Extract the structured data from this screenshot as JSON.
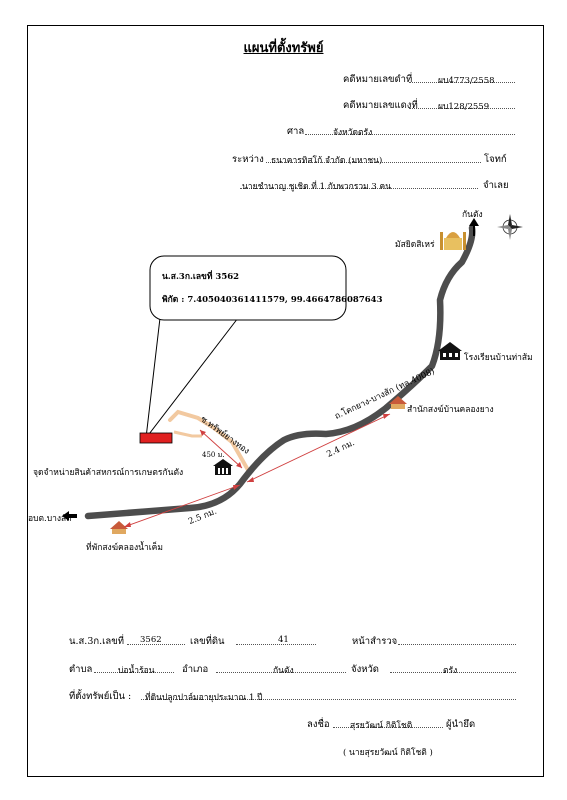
{
  "title": "แผนที่ตั้งทรัพย์",
  "header": {
    "case_black_label": "คดีหมายเลขดำที่",
    "case_black_value": "ผบ4773/2558",
    "case_red_label": "คดีหมายเลขแดงที่",
    "case_red_value": "ผบ128/2559",
    "court_label": "ศาล",
    "court_value": "จังหวัดตรัง",
    "between_label": "ระหว่าง",
    "plaintiff_value": "ธนาคารทิสโก้ จำกัด (มหาชน)",
    "plaintiff_label": "โจทก์",
    "defendant_value": "นายชำนาญ ชูเชิด ที่ 1 กับพวกรวม 3 คน",
    "defendant_label": "จำเลย"
  },
  "callout": {
    "deed": "น.ส.3ก.เลขที่ 3562",
    "coords": "พิกัด : 7.405040361411579, 99.4664786087643"
  },
  "map_labels": {
    "kantang": "กันตัง",
    "mosque": "มัสยิดสิเหร่",
    "school": "โรงเรียนบ้านท่าส้ม",
    "main_road": "ถ.โคกยาง-บางสัก (ทล.4008)",
    "temple_east": "สำนักสงฆ์บ้านคลองยาง",
    "side_road": "ซ.ทรัพย์ยางทอง",
    "dist_450": "450 ม.",
    "dist_24": "2.4 กม.",
    "coop": "จุดจำหน่ายสินค้าสหกรณ์การเกษตรกันตัง",
    "dist_25": "2.5 กม.",
    "bangsak": "อบต.บางสัก",
    "temple_west": "ที่พักสงฆ์คลองน้ำเค็ม"
  },
  "footer": {
    "deed_label": "น.ส.3ก.เลขที่",
    "deed_value": "3562",
    "land_no_label": "เลขที่ดิน",
    "land_no_value": "41",
    "survey_label": "หน้าสำรวจ",
    "survey_value": "",
    "subdistrict_label": "ตำบล",
    "subdistrict_value": "บ่อน้ำร้อน",
    "district_label": "อำเภอ",
    "district_value": "กันตัง",
    "province_label": "จังหวัด",
    "province_value": "ตรัง",
    "location_label": "ที่ตั้งทรัพย์เป็น :",
    "location_value": "ที่ดินปลูกปาล์มอายุประมาณ 1 ปี",
    "sign_label": "ลงชื่อ",
    "sign_value": "สุรยวัฒน์ กิติโชติ",
    "sign_role": "ผู้นำยึด",
    "sign_name": "( นายสุรยวัฒน์ กิติโชติ )"
  },
  "colors": {
    "road": "#4d4d4d",
    "side_road": "#f2c9a0",
    "property": "#e02020",
    "distance_line": "#d04040",
    "temple": "#d9a050"
  },
  "icons": [
    "compass-icon",
    "north-arrow-icon",
    "mosque-icon",
    "school-icon",
    "temple-icon",
    "building-icon",
    "west-arrow-icon"
  ]
}
